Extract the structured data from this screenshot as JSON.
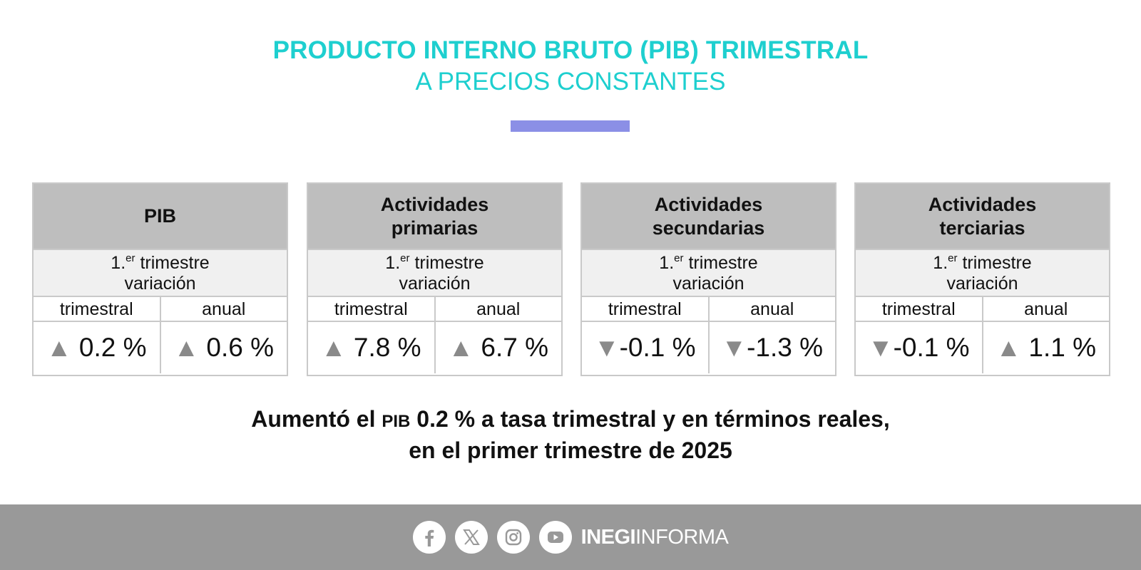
{
  "header": {
    "title": "PRODUCTO INTERNO BRUTO (PIB) TRIMESTRAL",
    "subtitle": "A PRECIOS CONSTANTES",
    "title_color": "#1ecfcf",
    "accent_color": "#8b8fe6"
  },
  "period": {
    "prefix": "1.",
    "sup": "er",
    "suffix": " trimestre",
    "line2": "variación"
  },
  "columns": {
    "quarterly": "trimestral",
    "annual": "anual"
  },
  "arrow_icons": {
    "up": "▲",
    "down": "▼",
    "color": "#8a8a8a"
  },
  "cards": [
    {
      "name": "PIB",
      "quarterly": "0.2 %",
      "quarterly_dir": "up",
      "annual": "0.6 %",
      "annual_dir": "up"
    },
    {
      "name": "Actividades primarias",
      "quarterly": "7.8 %",
      "quarterly_dir": "up",
      "annual": "6.7 %",
      "annual_dir": "up"
    },
    {
      "name": "Actividades secundarias",
      "quarterly": "-0.1 %",
      "quarterly_dir": "down",
      "annual": "-1.3 %",
      "annual_dir": "down"
    },
    {
      "name": "Actividades terciarias",
      "quarterly": "-0.1 %",
      "quarterly_dir": "down",
      "annual": "1.1 %",
      "annual_dir": "up"
    }
  ],
  "summary": {
    "part1": "Aumentó el ",
    "pib": "PIB",
    "part2": " 0.2 % a tasa trimestral y en términos reales,",
    "line2": "en el primer trimestre de 2025"
  },
  "footer": {
    "icons": [
      "facebook-icon",
      "x-icon",
      "instagram-icon",
      "youtube-icon"
    ],
    "brand_bold": "INEGI",
    "brand_regular": "INFORMA",
    "background": "#999999"
  }
}
